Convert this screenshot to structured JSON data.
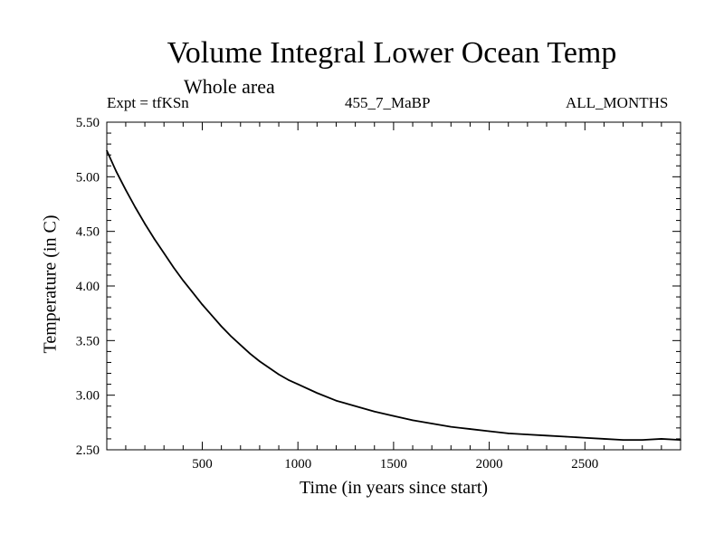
{
  "chart_data": {
    "type": "line",
    "title": "Volume Integral Lower Ocean Temp",
    "subtitle": "Whole area",
    "experiment_label": "Expt = tfKSn",
    "period_label": "455_7_MaBP",
    "months_label": "ALL_MONTHS",
    "xlabel": "Time (in years since start)",
    "ylabel": "Temperature (in C)",
    "xlim": [
      1,
      3000
    ],
    "ylim": [
      2.5,
      5.5
    ],
    "x_ticks": [
      500,
      1000,
      1500,
      2000,
      2500
    ],
    "y_ticks": [
      2.5,
      3.0,
      3.5,
      4.0,
      4.5,
      5.0,
      5.5
    ],
    "y_tick_labels": [
      "2.50",
      "3.00",
      "3.50",
      "4.00",
      "4.50",
      "5.00",
      "5.50"
    ],
    "grid": false,
    "series": [
      {
        "name": "Volume Integral Lower Ocean Temp",
        "x": [
          1,
          50,
          100,
          150,
          200,
          250,
          300,
          350,
          400,
          450,
          500,
          550,
          600,
          650,
          700,
          750,
          800,
          850,
          900,
          950,
          1000,
          1100,
          1200,
          1300,
          1400,
          1500,
          1600,
          1700,
          1800,
          1900,
          2000,
          2100,
          2200,
          2300,
          2400,
          2500,
          2600,
          2700,
          2800,
          2900,
          3000
        ],
        "values": [
          5.24,
          5.05,
          4.88,
          4.72,
          4.57,
          4.43,
          4.3,
          4.17,
          4.05,
          3.94,
          3.83,
          3.73,
          3.63,
          3.54,
          3.46,
          3.38,
          3.31,
          3.25,
          3.19,
          3.14,
          3.1,
          3.02,
          2.95,
          2.9,
          2.85,
          2.81,
          2.77,
          2.74,
          2.71,
          2.69,
          2.67,
          2.65,
          2.64,
          2.63,
          2.62,
          2.61,
          2.6,
          2.59,
          2.59,
          2.6,
          2.59
        ]
      }
    ]
  }
}
